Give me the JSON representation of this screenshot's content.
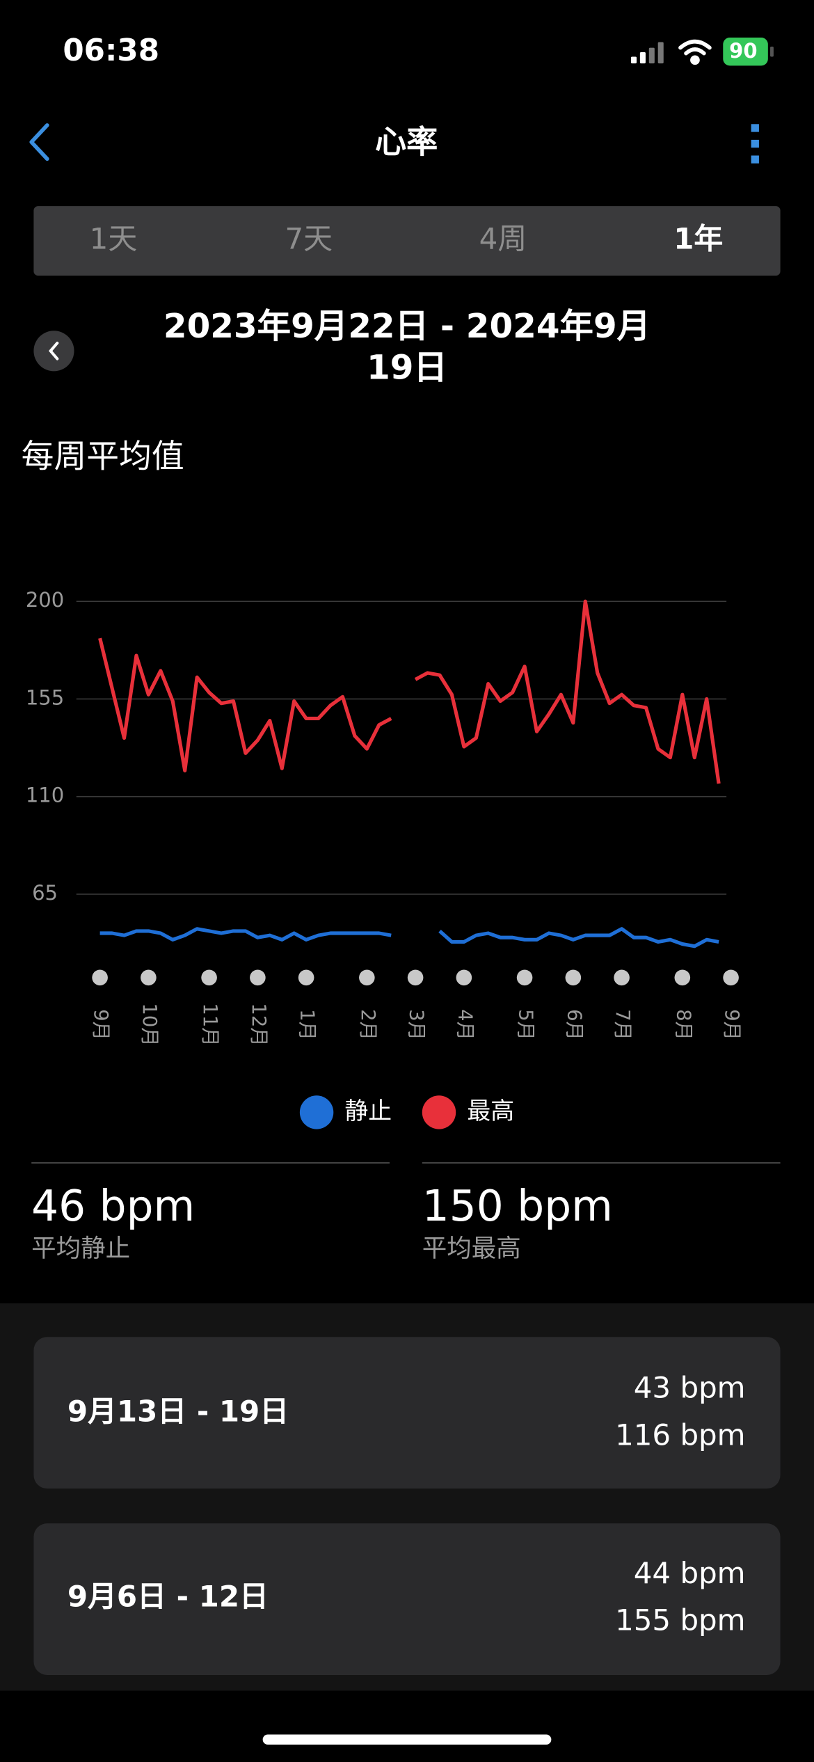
{
  "status_bar": {
    "time": "06:38",
    "battery": "90"
  },
  "header": {
    "title": "心率"
  },
  "tabs": [
    "1天",
    "7天",
    "4周",
    "1年"
  ],
  "date_range": "2023年9月22日 - 2024年9月19日",
  "section_title": "每周平均值",
  "chart_data": {
    "type": "line",
    "categories": [
      "9月",
      null,
      null,
      null,
      "10月",
      null,
      null,
      null,
      null,
      "11月",
      null,
      null,
      null,
      "12月",
      null,
      null,
      null,
      "1月",
      null,
      null,
      null,
      null,
      "2月",
      null,
      null,
      null,
      "3月",
      null,
      null,
      null,
      "4月",
      null,
      null,
      null,
      null,
      "5月",
      null,
      null,
      null,
      "6月",
      null,
      null,
      null,
      "7月",
      null,
      null,
      null,
      null,
      "8月",
      null,
      null,
      null,
      "9月"
    ],
    "series": [
      {
        "name": "静止",
        "color": "#1f6fd6",
        "values": [
          47,
          47,
          46,
          48,
          48,
          47,
          44,
          46,
          49,
          48,
          47,
          48,
          48,
          45,
          46,
          44,
          47,
          44,
          46,
          47,
          47,
          47,
          47,
          47,
          46,
          null,
          null,
          null,
          48,
          43,
          43,
          46,
          47,
          45,
          45,
          44,
          44,
          47,
          46,
          44,
          46,
          46,
          46,
          49,
          45,
          45,
          43,
          44,
          42,
          41,
          44,
          43,
          null
        ]
      },
      {
        "name": "最高",
        "color": "#e8303a",
        "values": [
          183,
          160,
          137,
          175,
          157,
          168,
          154,
          122,
          165,
          158,
          153,
          154,
          130,
          136,
          145,
          123,
          154,
          146,
          146,
          152,
          156,
          138,
          132,
          143,
          146,
          null,
          164,
          167,
          166,
          157,
          133,
          137,
          162,
          154,
          158,
          170,
          140,
          148,
          157,
          144,
          200,
          167,
          153,
          157,
          152,
          151,
          132,
          128,
          157,
          128,
          155,
          116,
          null
        ]
      }
    ],
    "ylim": [
      40,
      200
    ],
    "yticks": [
      65,
      110,
      155,
      200
    ],
    "grid": true
  },
  "stats": [
    {
      "value": "46 bpm",
      "label": "平均静止"
    },
    {
      "value": "150 bpm",
      "label": "平均最高"
    }
  ],
  "weeks": [
    {
      "range": "9月13日 - 19日",
      "resting": "43 bpm",
      "max": "116 bpm"
    },
    {
      "range": "9月6日 - 12日",
      "resting": "44 bpm",
      "max": "155 bpm"
    }
  ]
}
